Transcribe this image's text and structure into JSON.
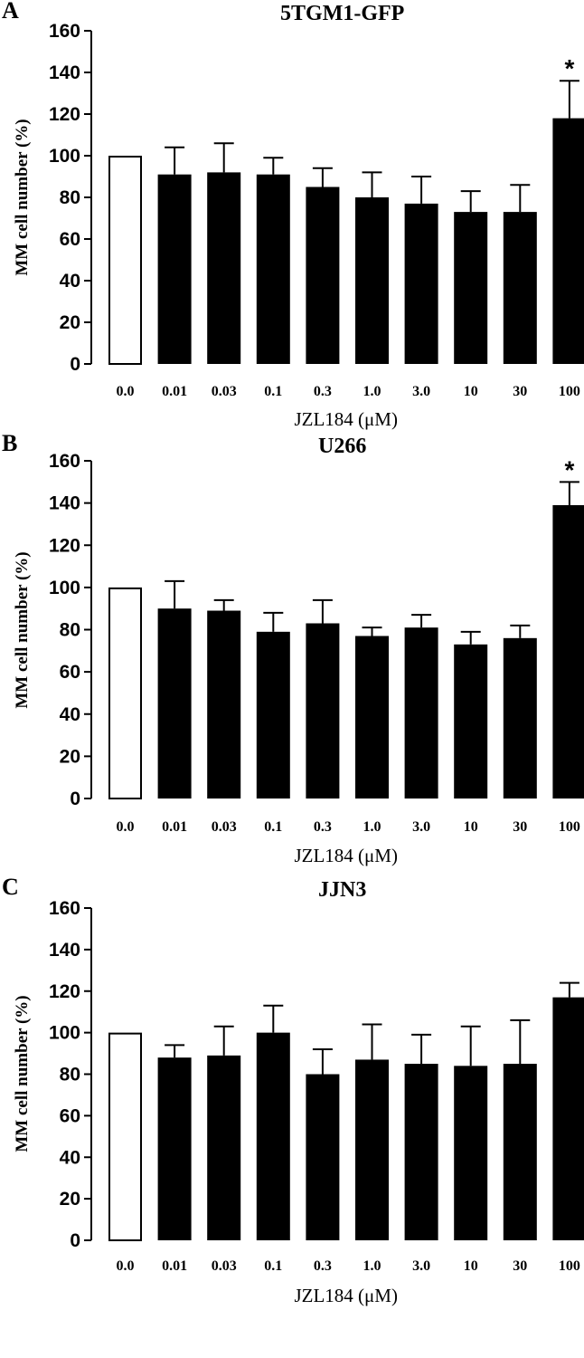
{
  "colors": {
    "bar_fill": "#000000",
    "control_fill": "#ffffff",
    "axis": "#000000"
  },
  "chart_data": [
    {
      "type": "bar",
      "panel": "A",
      "title": "5TGM1-GFP",
      "xlabel": "JZL184 (μM)",
      "ylabel": "MM cell  number (%)",
      "ylim": [
        0,
        160
      ],
      "yticks": [
        "0",
        "20",
        "40",
        "60",
        "80",
        "100",
        "120",
        "140",
        "160"
      ],
      "categories": [
        "0.0",
        "0.01",
        "0.03",
        "0.1",
        "0.3",
        "1.0",
        "3.0",
        "10",
        "30",
        "100"
      ],
      "values": [
        100,
        91,
        92,
        91,
        85,
        80,
        77,
        73,
        73,
        118
      ],
      "error_upper": [
        0,
        13,
        14,
        8,
        9,
        12,
        13,
        10,
        13,
        18
      ],
      "control_index": 0,
      "annotations": [
        {
          "index": 9,
          "text": "*"
        }
      ],
      "grid": false
    },
    {
      "type": "bar",
      "panel": "B",
      "title": "U266",
      "xlabel": "JZL184 (μM)",
      "ylabel": "MM cell  number (%)",
      "ylim": [
        0,
        160
      ],
      "yticks": [
        "0",
        "20",
        "40",
        "60",
        "80",
        "100",
        "120",
        "140",
        "160"
      ],
      "categories": [
        "0.0",
        "0.01",
        "0.03",
        "0.1",
        "0.3",
        "1.0",
        "3.0",
        "10",
        "30",
        "100"
      ],
      "values": [
        100,
        90,
        89,
        79,
        83,
        77,
        81,
        73,
        76,
        139
      ],
      "error_upper": [
        0,
        13,
        5,
        9,
        11,
        4,
        6,
        6,
        6,
        11
      ],
      "control_index": 0,
      "annotations": [
        {
          "index": 9,
          "text": "*"
        }
      ],
      "grid": false
    },
    {
      "type": "bar",
      "panel": "C",
      "title": "JJN3",
      "xlabel": "JZL184 (μM)",
      "ylabel": "MM cell  number (%)",
      "ylim": [
        0,
        160
      ],
      "yticks": [
        "0",
        "20",
        "40",
        "60",
        "80",
        "100",
        "120",
        "140",
        "160"
      ],
      "categories": [
        "0.0",
        "0.01",
        "0.03",
        "0.1",
        "0.3",
        "1.0",
        "3.0",
        "10",
        "30",
        "100"
      ],
      "values": [
        100,
        88,
        89,
        100,
        80,
        87,
        85,
        84,
        85,
        117
      ],
      "error_upper": [
        0,
        6,
        14,
        13,
        12,
        17,
        14,
        19,
        21,
        7
      ],
      "control_index": 0,
      "annotations": [],
      "grid": false
    }
  ]
}
